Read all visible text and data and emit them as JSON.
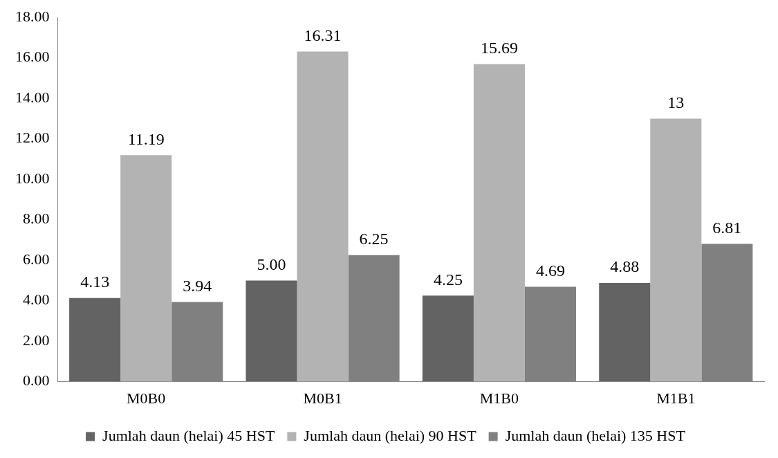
{
  "chart_data": {
    "type": "bar",
    "categories": [
      "M0B0",
      "M0B1",
      "M1B0",
      "M1B1"
    ],
    "series": [
      {
        "name": "Jumlah daun (helai) 45 HST",
        "color": "#636363",
        "values": [
          4.13,
          5.0,
          4.25,
          4.88
        ],
        "value_labels": [
          "4.13",
          "5.00",
          "4.25",
          "4.88"
        ]
      },
      {
        "name": "Jumlah daun (helai) 90 HST",
        "color": "#b3b3b3",
        "values": [
          11.19,
          16.31,
          15.69,
          13
        ],
        "value_labels": [
          "11.19",
          "16.31",
          "15.69",
          "13"
        ]
      },
      {
        "name": "Jumlah daun (helai) 135 HST",
        "color": "#808080",
        "values": [
          3.94,
          6.25,
          4.69,
          6.81
        ],
        "value_labels": [
          "3.94",
          "6.25",
          "4.69",
          "6.81"
        ]
      }
    ],
    "ylim": [
      0,
      18
    ],
    "yticks": [
      {
        "value": 0,
        "label": "0.00"
      },
      {
        "value": 2,
        "label": "2.00"
      },
      {
        "value": 4,
        "label": "4.00"
      },
      {
        "value": 6,
        "label": "6.00"
      },
      {
        "value": 8,
        "label": "8.00"
      },
      {
        "value": 10,
        "label": "10.00"
      },
      {
        "value": 12,
        "label": "12.00"
      },
      {
        "value": 14,
        "label": "14.00"
      },
      {
        "value": 16,
        "label": "16.00"
      },
      {
        "value": 18,
        "label": "18.00"
      }
    ],
    "grid": false,
    "legend": "bottom"
  }
}
